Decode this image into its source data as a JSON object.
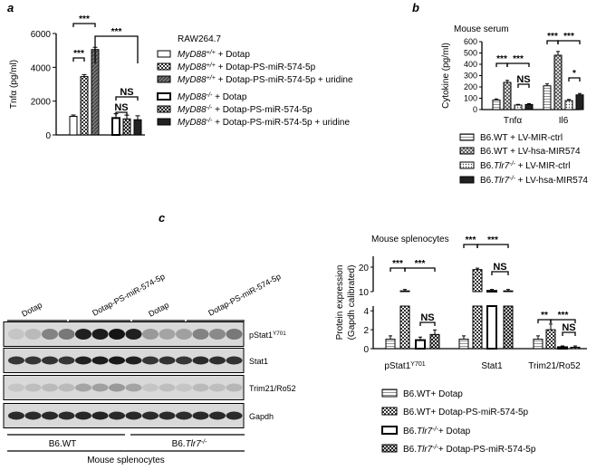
{
  "panel_letters": {
    "a": "a",
    "b": "b",
    "c": "c"
  },
  "chart_data": [
    {
      "id": "a",
      "type": "bar",
      "ylabel": "Tnfα (pg/ml)",
      "yticks": [
        0,
        2000,
        4000,
        6000
      ],
      "ylim": [
        0,
        6000
      ],
      "cell_label": "RAW264.7",
      "series": [
        {
          "name": "MyD88+/+ + Dotap",
          "value": 1100,
          "error": 80,
          "pattern": "white"
        },
        {
          "name": "MyD88+/+ + Dotap-PS-miR-574-5p",
          "value": 3450,
          "error": 120,
          "pattern": "checker"
        },
        {
          "name": "MyD88+/+ + Dotap-PS-miR-574-5p + uridine",
          "value": 5050,
          "error": 130,
          "pattern": "hatch"
        },
        {
          "name": "MyD88-/- + Dotap",
          "value": 1000,
          "error": 250,
          "pattern": "white-thick"
        },
        {
          "name": "MyD88-/- + Dotap-PS-miR-574-5p",
          "value": 950,
          "error": 220,
          "pattern": "checker-dark"
        },
        {
          "name": "MyD88-/- + Dotap-PS-miR-574-5p + uridine",
          "value": 900,
          "error": 230,
          "pattern": "dark"
        }
      ],
      "legend": [
        {
          "gene": "MyD88",
          "sup": "+/+",
          "rest": " + Dotap"
        },
        {
          "gene": "MyD88",
          "sup": "+/+",
          "rest": " + Dotap-PS-miR-574-5p"
        },
        {
          "gene": "MyD88",
          "sup": "+/+",
          "rest": " + Dotap-PS-miR-574-5p + uridine"
        },
        {
          "gene": "MyD88",
          "sup": "-/-",
          "rest": " + Dotap"
        },
        {
          "gene": "MyD88",
          "sup": "-/-",
          "rest": " + Dotap-PS-miR-574-5p"
        },
        {
          "gene": "MyD88",
          "sup": "-/-",
          "rest": " + Dotap-PS-miR-574-5p + uridine"
        }
      ],
      "significance": [
        "***",
        "***",
        "***",
        "NS",
        "NS"
      ]
    },
    {
      "id": "b",
      "type": "bar",
      "title": "Mouse serum",
      "ylabel": "Cytokine (pg/ml)",
      "yticks": [
        0,
        100,
        200,
        300,
        400,
        500,
        600
      ],
      "ylim": [
        0,
        600
      ],
      "categories": [
        "Tnfα",
        "Il6"
      ],
      "series": [
        {
          "name": "B6.WT + LV-MIR-ctrl",
          "values": [
            85,
            210
          ],
          "pattern": "lines"
        },
        {
          "name": "B6.WT + LV-hsa-MIR574",
          "values": [
            240,
            480
          ],
          "pattern": "cross"
        },
        {
          "name": "B6.Tlr7-/- + LV-MIR-ctrl",
          "values": [
            40,
            80
          ],
          "pattern": "dots"
        },
        {
          "name": "B6.Tlr7-/- + LV-hsa-MIR574",
          "values": [
            45,
            130
          ],
          "pattern": "dark"
        }
      ],
      "legend": [
        {
          "pre": "B6.WT",
          "sup": "",
          "rest": "  + LV-MIR-ctrl"
        },
        {
          "pre": "B6.WT",
          "sup": "",
          "rest": "  + LV-hsa-MIR574"
        },
        {
          "pre": "B6.Tlr7",
          "sup": "-/-",
          "rest": "  + LV-MIR-ctrl"
        },
        {
          "pre": "B6.Tlr7",
          "sup": "-/-",
          "rest": "  + LV-hsa-MIR574"
        }
      ],
      "significance": [
        "***",
        "***",
        "NS",
        "***",
        "***",
        "*"
      ]
    },
    {
      "id": "c",
      "type": "bar",
      "title": "Mouse splenocytes",
      "ylabel": "Protein expression",
      "ylabel2": "(Gapdh calibrated)",
      "yticks_upper": [
        10,
        20
      ],
      "yticks_lower": [
        0,
        2,
        4
      ],
      "categories": [
        "pStat1Y701",
        "Stat1",
        "Trim21/Ro52"
      ],
      "category_labels": [
        {
          "base": "pStat1",
          "sup": "Y701"
        },
        {
          "base": "Stat1",
          "sup": ""
        },
        {
          "base": "Trim21/Ro52",
          "sup": ""
        }
      ],
      "series": [
        {
          "name": "B6.WT+ Dotap",
          "values": [
            1,
            1,
            1
          ],
          "pattern": "lines"
        },
        {
          "name": "B6.WT+ Dotap-PS-miR-574-5p",
          "values": [
            10,
            19,
            2
          ],
          "pattern": "checker"
        },
        {
          "name": "B6.Tlr7-/-+ Dotap",
          "values": [
            0.9,
            6.5,
            0.15
          ],
          "pattern": "white-thick"
        },
        {
          "name": "B6.Tlr7-/-+ Dotap-PS-miR-574-5p",
          "values": [
            1.5,
            7.0,
            0.15
          ],
          "pattern": "checker-dark"
        }
      ],
      "legend": [
        {
          "pre": "B6.WT+ Dotap",
          "sup": "",
          "rest": ""
        },
        {
          "pre": "B6.WT+ Dotap-PS-miR-574-5p",
          "sup": "",
          "rest": ""
        },
        {
          "pre": "B6.Tlr7",
          "sup": "-/-",
          "rest": "+ Dotap"
        },
        {
          "pre": "B6.Tlr7",
          "sup": "-/-",
          "rest": "+ Dotap-PS-miR-574-5p"
        }
      ],
      "significance": [
        "***",
        "***",
        "NS",
        "***",
        "***",
        "NS",
        "**",
        "***",
        "NS"
      ]
    }
  ],
  "blot": {
    "lane_groups": [
      "Dotap",
      "Dotap-PS-miR-574-5p",
      "Dotap",
      "Dotap-PS-miR-574-5p"
    ],
    "rows": [
      {
        "label": "pStat1",
        "sup": "Y701"
      },
      {
        "label": "Stat1",
        "sup": ""
      },
      {
        "label": "Trim21/Ro52",
        "sup": ""
      },
      {
        "label": "Gapdh",
        "sup": ""
      }
    ],
    "genotype_wt": "B6.WT",
    "genotype_ko": "B6.Tlr7",
    "genotype_ko_sup": "-/-",
    "footer": "Mouse splenocytes"
  }
}
